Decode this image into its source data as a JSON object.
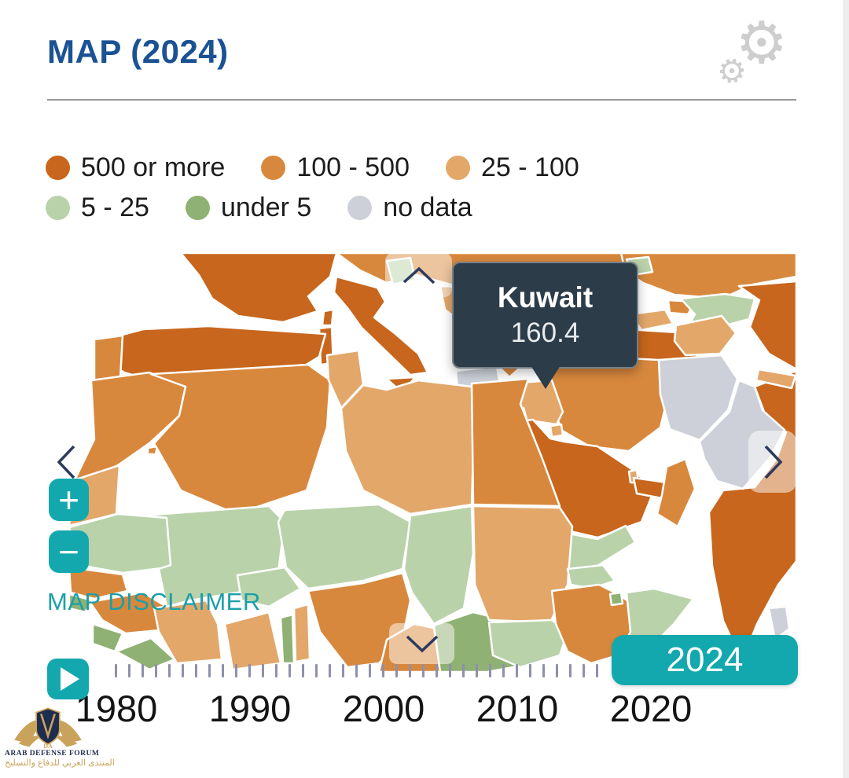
{
  "colors": {
    "title_blue": "#1a5294",
    "teal": "#13a8ad",
    "teal_text": "#1b9faa",
    "navy": "#2c3a5e",
    "tooltip_bg": "#2d3c49",
    "tick": "#8f8fae",
    "rule": "#9b9b9b",
    "gear": "#cecece",
    "year_text": "#141414",
    "legend_text": "#1c1c1c",
    "cat1": "#c7661c",
    "cat2": "#d8883d",
    "cat3": "#e3a76a",
    "cat4": "#b9d2aa",
    "cat5": "#8fb173",
    "cat6": "#cdd0d8",
    "logo_gold": "#c9a35b",
    "logo_navy": "#1e2c4f"
  },
  "header": {
    "title": "MAP (2024)"
  },
  "icons": {
    "gear": "⚙"
  },
  "legend": {
    "items": [
      {
        "label": "500 or more",
        "category": "cat1",
        "color": "#c7661c"
      },
      {
        "label": "100 - 500",
        "category": "cat2",
        "color": "#d8883d"
      },
      {
        "label": "25 - 100",
        "category": "cat3",
        "color": "#e3a76a"
      },
      {
        "label": "5 - 25",
        "category": "cat4",
        "color": "#b9d2aa"
      },
      {
        "label": "under 5",
        "category": "cat5",
        "color": "#8fb173"
      },
      {
        "label": "no data",
        "category": "cat6",
        "color": "#cdd0d8"
      }
    ]
  },
  "tooltip": {
    "country": "Kuwait",
    "value": "160.4"
  },
  "map": {
    "disclaimer": "MAP DISCLAIMER",
    "zoom_in": "+",
    "zoom_out": "−"
  },
  "timeline": {
    "decades": [
      "1980",
      "1990",
      "2000",
      "2010",
      "2020"
    ],
    "current_year": "2024",
    "tick_count": 37
  },
  "watermark": {
    "monogram": "DA",
    "line1": "ARAB DEFENSE FORUM",
    "line2": "المنتدى العربي للدفاع والتسليح"
  },
  "chart_data": {
    "type": "choropleth-map",
    "title": "MAP (2024)",
    "year": 2024,
    "legend_classes": [
      "500 or more",
      "100 - 500",
      "25 - 100",
      "5 - 25",
      "under 5",
      "no data"
    ],
    "highlighted": {
      "country": "Kuwait",
      "value": 160.4
    },
    "timeline_range": [
      1980,
      2024
    ]
  }
}
